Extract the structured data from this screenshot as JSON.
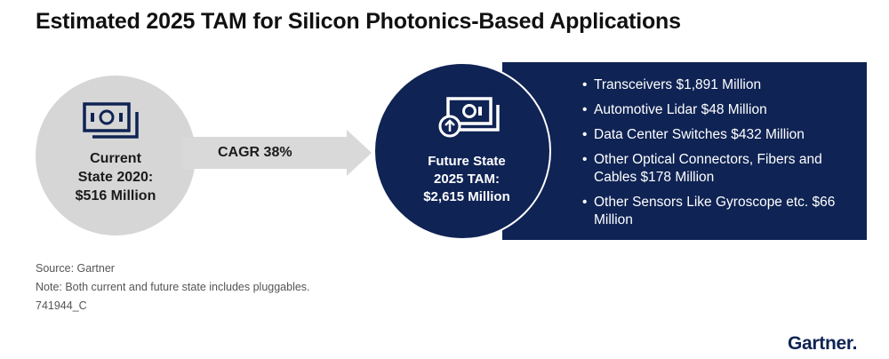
{
  "title": "Estimated 2025 TAM for Silicon Photonics-Based Applications",
  "current": {
    "line1": "Current",
    "line2": "State 2020:",
    "line3": "$516 Million",
    "icon": "money-icon"
  },
  "arrow": {
    "label": "CAGR 38%"
  },
  "future": {
    "line1": "Future State",
    "line2": "2025 TAM:",
    "line3": "$2,615 Million",
    "icon": "money-growth-icon"
  },
  "applications": [
    "Transceivers $1,891 Million",
    "Automotive Lidar $48 Million",
    "Data Center Switches $432 Million",
    "Other Optical Connectors, Fibers and Cables $178 Million",
    "Other Sensors Like Gyroscope etc. $66 Million"
  ],
  "footer": {
    "source": "Source: Gartner",
    "note": "Note: Both current and future state includes pluggables.",
    "id": "741944_C"
  },
  "logo": "Gartner",
  "colors": {
    "navy": "#0f2354",
    "gray_circle": "#d6d6d6",
    "arrow_gray": "#d9d9d9"
  }
}
